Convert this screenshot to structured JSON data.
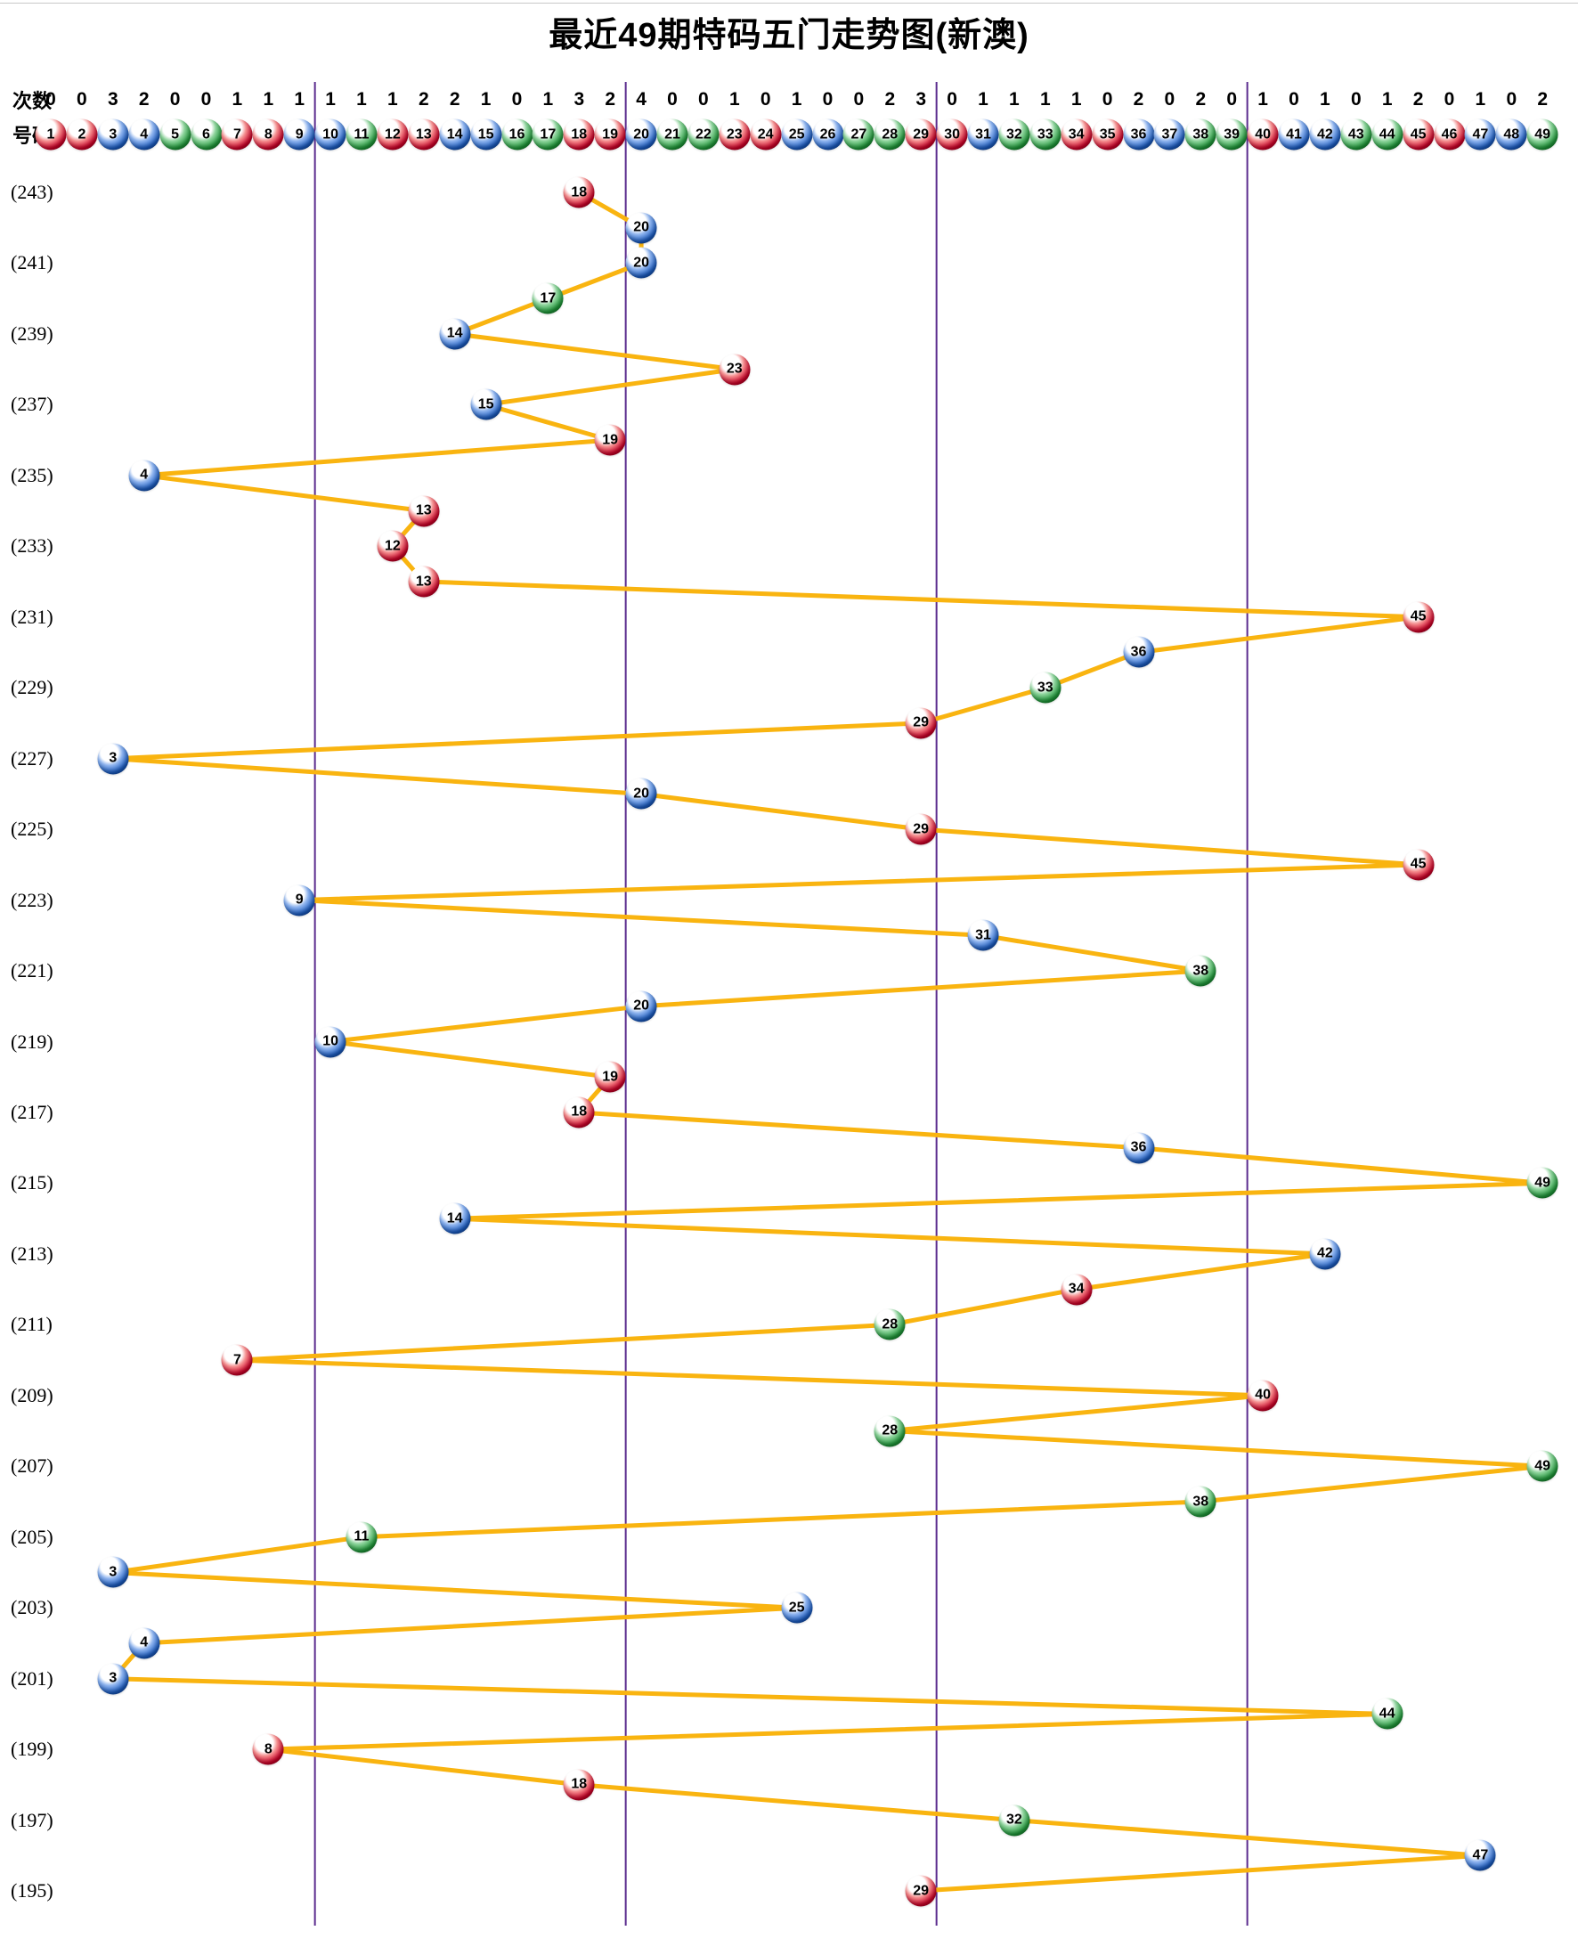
{
  "title": "最近49期特码五门走势图(新澳)",
  "header": {
    "counts_label": "次数",
    "numbers_label": "号码",
    "counts": [
      0,
      0,
      3,
      2,
      0,
      0,
      1,
      1,
      1,
      1,
      1,
      1,
      2,
      2,
      1,
      0,
      1,
      3,
      2,
      4,
      0,
      0,
      1,
      0,
      1,
      0,
      0,
      2,
      3,
      0,
      1,
      1,
      1,
      1,
      0,
      2,
      0,
      2,
      0,
      1,
      0,
      1,
      0,
      1,
      2,
      0,
      1,
      0,
      2
    ],
    "ball_numbers": [
      1,
      2,
      3,
      4,
      5,
      6,
      7,
      8,
      9,
      10,
      11,
      12,
      13,
      14,
      15,
      16,
      17,
      18,
      19,
      20,
      21,
      22,
      23,
      24,
      25,
      26,
      27,
      28,
      29,
      30,
      31,
      32,
      33,
      34,
      35,
      36,
      37,
      38,
      39,
      40,
      41,
      42,
      43,
      44,
      45,
      46,
      47,
      48,
      49
    ]
  },
  "colors": {
    "red": "#d50029",
    "blue": "#1b5ec7",
    "green": "#1f9c3a",
    "line": "#f9b410",
    "divider": "#5b2c8e",
    "red_numbers": [
      1,
      2,
      7,
      8,
      12,
      13,
      18,
      19,
      23,
      24,
      29,
      30,
      34,
      35,
      40,
      45,
      46
    ],
    "blue_numbers": [
      3,
      4,
      9,
      10,
      14,
      15,
      20,
      25,
      26,
      31,
      36,
      37,
      41,
      42,
      47,
      48
    ],
    "green_numbers": [
      5,
      6,
      11,
      16,
      17,
      21,
      22,
      27,
      28,
      32,
      33,
      38,
      39,
      43,
      44,
      49
    ]
  },
  "chart_data": {
    "type": "line",
    "title": "最近49期特码五门走势图(新澳)",
    "x_label": "号码",
    "x_range": [
      1,
      49
    ],
    "y_label": "期号",
    "y_order": "243 at top descending to 195 at bottom",
    "group_boundaries_after_numbers": [
      9,
      19,
      29,
      39
    ],
    "counts_per_number": [
      0,
      0,
      3,
      2,
      0,
      0,
      1,
      1,
      1,
      1,
      1,
      1,
      2,
      2,
      1,
      0,
      1,
      3,
      2,
      4,
      0,
      0,
      1,
      0,
      1,
      0,
      0,
      2,
      3,
      0,
      1,
      1,
      1,
      1,
      0,
      2,
      0,
      2,
      0,
      1,
      0,
      1,
      0,
      1,
      2,
      0,
      1,
      0,
      2
    ],
    "points": [
      {
        "period": 243,
        "label": "(243)",
        "number": 18
      },
      {
        "period": 242,
        "label": "",
        "number": 20
      },
      {
        "period": 241,
        "label": "(241)",
        "number": 20
      },
      {
        "period": 240,
        "label": "",
        "number": 17
      },
      {
        "period": 239,
        "label": "(239)",
        "number": 14
      },
      {
        "period": 238,
        "label": "",
        "number": 23
      },
      {
        "period": 237,
        "label": "(237)",
        "number": 15
      },
      {
        "period": 236,
        "label": "",
        "number": 19
      },
      {
        "period": 235,
        "label": "(235)",
        "number": 4
      },
      {
        "period": 234,
        "label": "",
        "number": 13
      },
      {
        "period": 233,
        "label": "(233)",
        "number": 12
      },
      {
        "period": 232,
        "label": "",
        "number": 13
      },
      {
        "period": 231,
        "label": "(231)",
        "number": 45
      },
      {
        "period": 230,
        "label": "",
        "number": 36
      },
      {
        "period": 229,
        "label": "(229)",
        "number": 33
      },
      {
        "period": 228,
        "label": "",
        "number": 29
      },
      {
        "period": 227,
        "label": "(227)",
        "number": 3
      },
      {
        "period": 226,
        "label": "",
        "number": 20
      },
      {
        "period": 225,
        "label": "(225)",
        "number": 29
      },
      {
        "period": 224,
        "label": "",
        "number": 45
      },
      {
        "period": 223,
        "label": "(223)",
        "number": 9
      },
      {
        "period": 222,
        "label": "",
        "number": 31
      },
      {
        "period": 221,
        "label": "(221)",
        "number": 38
      },
      {
        "period": 220,
        "label": "",
        "number": 20
      },
      {
        "period": 219,
        "label": "(219)",
        "number": 10
      },
      {
        "period": 218,
        "label": "",
        "number": 19
      },
      {
        "period": 217,
        "label": "(217)",
        "number": 18
      },
      {
        "period": 216,
        "label": "",
        "number": 36
      },
      {
        "period": 215,
        "label": "(215)",
        "number": 49
      },
      {
        "period": 214,
        "label": "",
        "number": 14
      },
      {
        "period": 213,
        "label": "(213)",
        "number": 42
      },
      {
        "period": 212,
        "label": "",
        "number": 34
      },
      {
        "period": 211,
        "label": "(211)",
        "number": 28
      },
      {
        "period": 210,
        "label": "",
        "number": 7
      },
      {
        "period": 209,
        "label": "(209)",
        "number": 40
      },
      {
        "period": 208,
        "label": "",
        "number": 28
      },
      {
        "period": 207,
        "label": "(207)",
        "number": 49
      },
      {
        "period": 206,
        "label": "",
        "number": 38
      },
      {
        "period": 205,
        "label": "(205)",
        "number": 11
      },
      {
        "period": 204,
        "label": "",
        "number": 3
      },
      {
        "period": 203,
        "label": "(203)",
        "number": 25
      },
      {
        "period": 202,
        "label": "",
        "number": 4
      },
      {
        "period": 201,
        "label": "(201)",
        "number": 3
      },
      {
        "period": 200,
        "label": "",
        "number": 44
      },
      {
        "period": 199,
        "label": "(199)",
        "number": 8
      },
      {
        "period": 198,
        "label": "",
        "number": 18
      },
      {
        "period": 197,
        "label": "(197)",
        "number": 32
      },
      {
        "period": 196,
        "label": "",
        "number": 47
      },
      {
        "period": 195,
        "label": "(195)",
        "number": 29
      }
    ]
  }
}
